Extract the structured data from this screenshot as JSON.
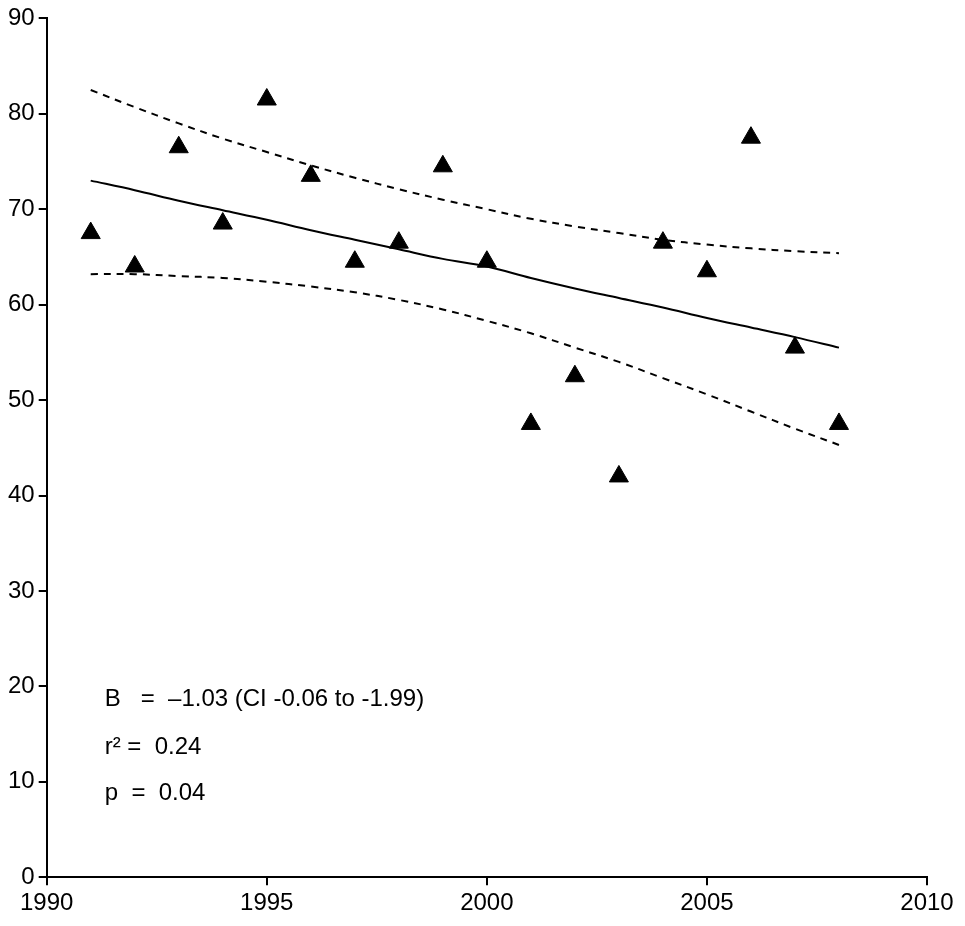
{
  "chart_data": {
    "type": "scatter",
    "x": [
      1991,
      1992,
      1993,
      1994,
      1995,
      1996,
      1997,
      1998,
      1999,
      2000,
      2001,
      2002,
      2003,
      2004,
      2005,
      2006,
      2007,
      2008
    ],
    "series": [
      {
        "type": "scatter",
        "marker": "triangle",
        "color": "#000000",
        "values": [
          67.5,
          64,
          76.5,
          68.5,
          81.5,
          73.5,
          64.5,
          66.5,
          74.5,
          64.5,
          47.5,
          52.5,
          42,
          66.5,
          63.5,
          77.5,
          55.5,
          47.5
        ]
      },
      {
        "type": "line",
        "line_style": "solid",
        "color": "#000000",
        "values": [
          73,
          72,
          70.9,
          69.9,
          68.9,
          67.8,
          66.8,
          65.8,
          64.8,
          64,
          62.8,
          61.7,
          60.7,
          59.7,
          58.6,
          57.6,
          56.6,
          55.5
        ]
      },
      {
        "type": "line",
        "line_style": "dashed",
        "color": "#000000",
        "values": [
          82.5,
          80.7,
          79,
          77.4,
          76,
          74.6,
          73.3,
          72.1,
          71,
          70,
          69,
          68.2,
          67.5,
          66.8,
          66.3,
          65.9,
          65.6,
          65.4
        ]
      },
      {
        "type": "line",
        "line_style": "dashed",
        "color": "#000000",
        "values": [
          63.2,
          63.2,
          63,
          62.8,
          62.4,
          61.9,
          61.3,
          60.5,
          59.5,
          58.3,
          57,
          55.5,
          54,
          52.3,
          50.6,
          48.8,
          47,
          45.3
        ]
      }
    ],
    "annotations": [
      "B   =  –1.03 (CI -0.06 to -1.99)",
      "r² =  0.24",
      "p  =  0.04"
    ],
    "xlim": [
      1990,
      2010
    ],
    "xticks": [
      1990,
      1995,
      2000,
      2005,
      2010
    ],
    "ylim": [
      0,
      90
    ],
    "yticks": [
      0,
      10,
      20,
      30,
      40,
      50,
      60,
      70,
      80,
      90
    ],
    "grid": false
  }
}
